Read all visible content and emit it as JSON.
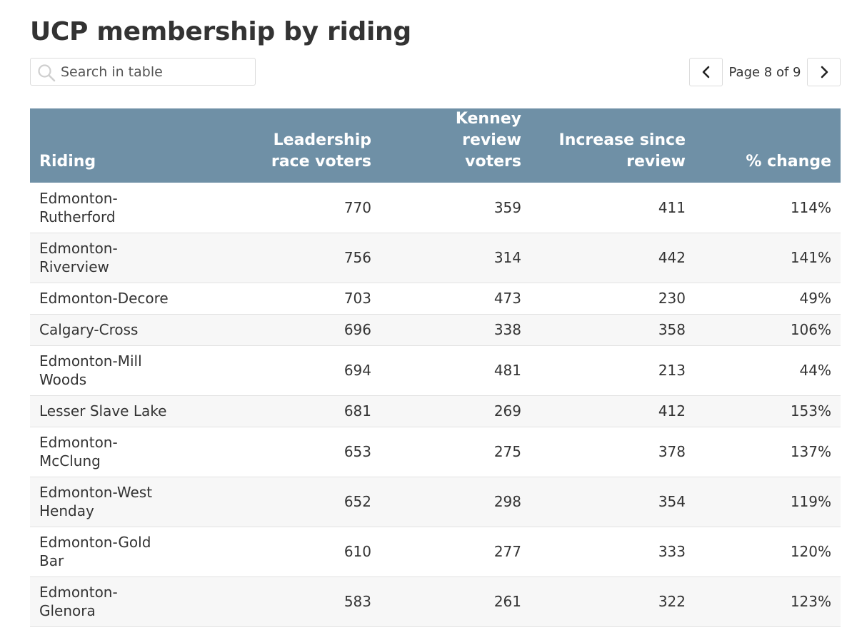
{
  "title": "UCP membership by riding",
  "search": {
    "placeholder": "Search in table",
    "icon": "search-icon"
  },
  "pager": {
    "text": "Page 8 of 9",
    "prev_icon": "chevron-left-icon",
    "next_icon": "chevron-right-icon"
  },
  "colors": {
    "header_bg": "#6f90a6",
    "header_text": "#ffffff",
    "row_alt": "#f7f7f7"
  },
  "chart_data": {
    "type": "table",
    "columns": [
      {
        "key": "riding",
        "label": "Riding",
        "align": "left"
      },
      {
        "key": "leadership",
        "label": "Leadership race voters",
        "align": "right"
      },
      {
        "key": "review",
        "label": "Kenney review voters",
        "align": "right"
      },
      {
        "key": "increase",
        "label": "Increase since review",
        "align": "right"
      },
      {
        "key": "pct",
        "label": "% change",
        "align": "right"
      }
    ],
    "rows": [
      {
        "riding": "Edmonton-Rutherford",
        "leadership": "770",
        "review": "359",
        "increase": "411",
        "pct": "114%"
      },
      {
        "riding": "Edmonton-Riverview",
        "leadership": "756",
        "review": "314",
        "increase": "442",
        "pct": "141%"
      },
      {
        "riding": "Edmonton-Decore",
        "leadership": "703",
        "review": "473",
        "increase": "230",
        "pct": "49%"
      },
      {
        "riding": "Calgary-Cross",
        "leadership": "696",
        "review": "338",
        "increase": "358",
        "pct": "106%"
      },
      {
        "riding": "Edmonton-Mill Woods",
        "leadership": "694",
        "review": "481",
        "increase": "213",
        "pct": "44%"
      },
      {
        "riding": "Lesser Slave Lake",
        "leadership": "681",
        "review": "269",
        "increase": "412",
        "pct": "153%"
      },
      {
        "riding": "Edmonton-McClung",
        "leadership": "653",
        "review": "275",
        "increase": "378",
        "pct": "137%"
      },
      {
        "riding": "Edmonton-West Henday",
        "leadership": "652",
        "review": "298",
        "increase": "354",
        "pct": "119%"
      },
      {
        "riding": "Edmonton-Gold Bar",
        "leadership": "610",
        "review": "277",
        "increase": "333",
        "pct": "120%"
      },
      {
        "riding": "Edmonton-Glenora",
        "leadership": "583",
        "review": "261",
        "increase": "322",
        "pct": "123%"
      }
    ]
  }
}
